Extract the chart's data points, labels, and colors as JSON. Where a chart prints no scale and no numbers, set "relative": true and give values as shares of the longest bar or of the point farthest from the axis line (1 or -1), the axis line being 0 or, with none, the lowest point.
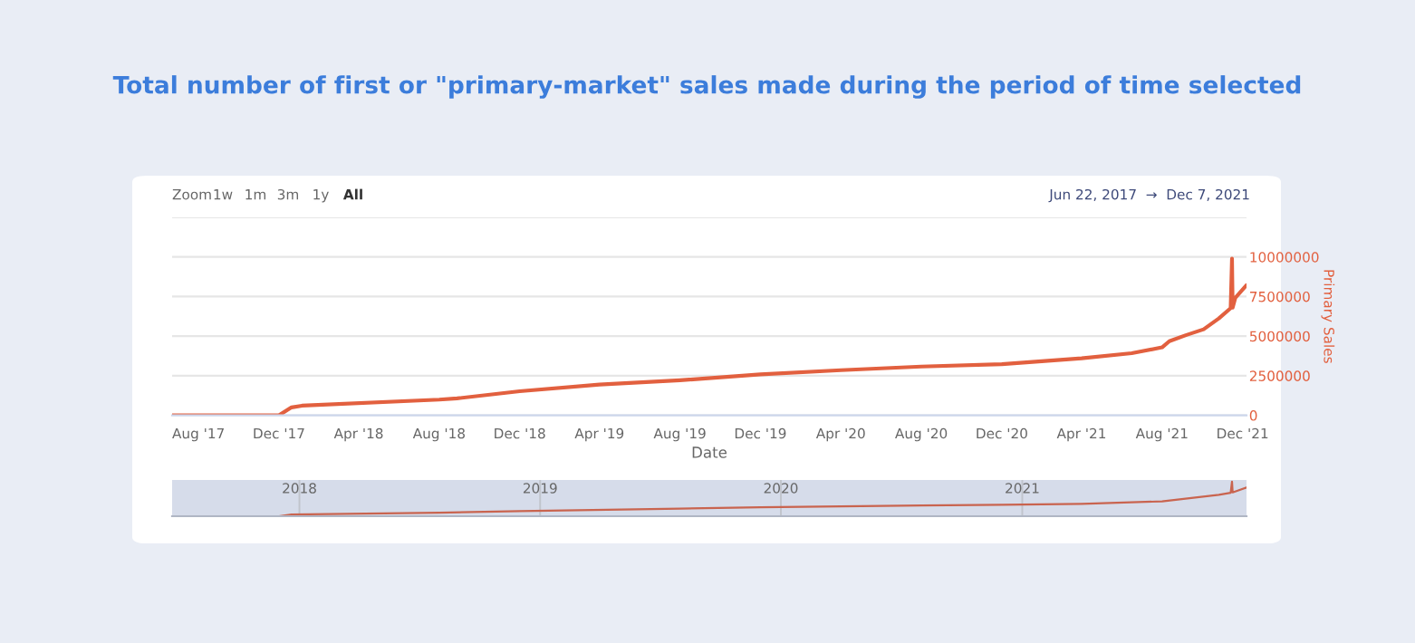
{
  "chart_data": [
    {
      "type": "line",
      "title": "Total number of first or \"primary-market\" sales made during the period of time selected",
      "xlabel": "Date",
      "ylabel": "Primary Sales",
      "annotations": [
        "Zoom",
        "1w",
        "1m",
        "3m",
        "1y",
        "All",
        "Jun 22, 2017  →  Dec 7, 2021"
      ],
      "series": [
        {
          "color": "#e2603f",
          "x": [
            "2017-06-22",
            "2017-12-01",
            "2017-12-20",
            "2018-01-05",
            "2018-08-01",
            "2018-08-28",
            "2018-12-01",
            "2019-04-01",
            "2019-08-01",
            "2019-12-01",
            "2020-04-01",
            "2020-08-01",
            "2020-12-01",
            "2021-04-01",
            "2021-06-16",
            "2021-08-01",
            "2021-08-12",
            "2021-09-06",
            "2021-10-03",
            "2021-10-26",
            "2021-11-13",
            "2021-11-15",
            "2021-11-16",
            "2021-11-20",
            "2021-12-07"
          ],
          "values": [
            0,
            0,
            500000,
            610000,
            990000,
            1070000,
            1520000,
            1940000,
            2210000,
            2590000,
            2850000,
            3080000,
            3230000,
            3600000,
            3920000,
            4290000,
            4680000,
            5060000,
            5430000,
            6120000,
            6770000,
            9900000,
            6800000,
            7420000,
            8220000
          ]
        }
      ],
      "xlim": [
        "2017-06-22",
        "2021-12-07"
      ],
      "xticks": [
        {
          "value": "2017-08-01",
          "label": "Aug '17"
        },
        {
          "value": "2017-12-01",
          "label": "Dec '17"
        },
        {
          "value": "2018-04-01",
          "label": "Apr '18"
        },
        {
          "value": "2018-08-01",
          "label": "Aug '18"
        },
        {
          "value": "2018-12-01",
          "label": "Dec '18"
        },
        {
          "value": "2019-04-01",
          "label": "Apr '19"
        },
        {
          "value": "2019-08-01",
          "label": "Aug '19"
        },
        {
          "value": "2019-12-01",
          "label": "Dec '19"
        },
        {
          "value": "2020-04-01",
          "label": "Apr '20"
        },
        {
          "value": "2020-08-01",
          "label": "Aug '20"
        },
        {
          "value": "2020-12-01",
          "label": "Dec '20"
        },
        {
          "value": "2021-04-01",
          "label": "Apr '21"
        },
        {
          "value": "2021-08-01",
          "label": "Aug '21"
        },
        {
          "value": "2021-12-01",
          "label": "Dec '21"
        }
      ],
      "ylim": [
        0,
        12500000
      ],
      "yticks": [
        0,
        2500000,
        5000000,
        7500000,
        10000000,
        {
          "value": 12500000,
          "label": null
        }
      ],
      "grid": "y",
      "legend": false
    },
    {
      "type": "line",
      "relative": true,
      "tick_labels": "x",
      "series": [
        {
          "color": "#c9644f",
          "x": [
            "2017-06-22",
            "2017-12-01",
            "2017-12-20",
            "2018-08-01",
            "2018-12-01",
            "2019-08-01",
            "2019-12-01",
            "2020-08-01",
            "2020-12-01",
            "2021-04-01",
            "2021-08-01",
            "2021-10-26",
            "2021-11-13",
            "2021-11-15",
            "2021-11-16",
            "2021-12-07"
          ],
          "values": [
            0,
            0,
            0.05,
            0.1,
            0.15,
            0.22,
            0.26,
            0.31,
            0.33,
            0.36,
            0.43,
            0.62,
            0.68,
            1,
            0.69,
            0.83
          ]
        }
      ],
      "xlim": [
        "2017-06-22",
        "2021-12-07"
      ],
      "xticks": [
        {
          "value": "2018-01-01",
          "label": "2018"
        },
        {
          "value": "2019-01-01",
          "label": "2019"
        },
        {
          "value": "2020-01-01",
          "label": "2020"
        },
        {
          "value": "2021-01-01",
          "label": "2021"
        }
      ],
      "grid": "x",
      "legend": false
    }
  ]
}
